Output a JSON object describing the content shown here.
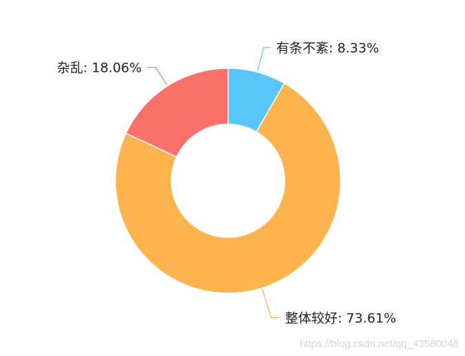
{
  "chart_data": {
    "type": "pie",
    "donut": true,
    "slices": [
      {
        "label": "有条不紊",
        "value": 8.33,
        "display": "有条不紊: 8.33%",
        "color": "#58c6f9"
      },
      {
        "label": "整体较好",
        "value": 73.61,
        "display": "整体较好: 73.61%",
        "color": "#fdb44f"
      },
      {
        "label": "杂乱",
        "value": 18.06,
        "display": "杂乱: 18.06%",
        "color": "#fc716a"
      }
    ]
  },
  "watermark": "https://blog.csdn.net/qq_43580048"
}
